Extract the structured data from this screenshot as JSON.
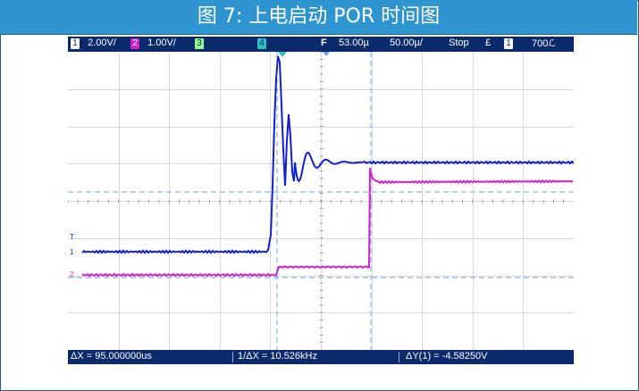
{
  "banner": {
    "title": "图 7: 上电启动 POR 时间图"
  },
  "scope": {
    "topbar": {
      "ch1_num": "1",
      "ch1_scale": "2.00V/",
      "ch2_num": "2",
      "ch2_scale": "1.00V/",
      "ch3_num": "3",
      "ch4_num": "4",
      "trig_marker": "F",
      "delay": "53.00µ",
      "timebase": "50.00µ/",
      "status": "Stop",
      "edge_symbol": "£",
      "trig_src": "1",
      "trig_level": "700ℒ"
    },
    "markers": {
      "ch1": "1",
      "ch2": "2",
      "trig": "T"
    },
    "bottombar": {
      "dx": "ΔX = 95.000000us",
      "inv_dx": "1/ΔX = 10.526kHz",
      "dy": "ΔY(1) = -4.58250V"
    },
    "colors": {
      "ch1": "#1020d0",
      "ch2": "#d020d0",
      "ch3": "#90ff90",
      "ch4": "#30c0c0",
      "cursor": "#6aa7e0",
      "bar_bg": "#0b2a6b"
    }
  }
}
